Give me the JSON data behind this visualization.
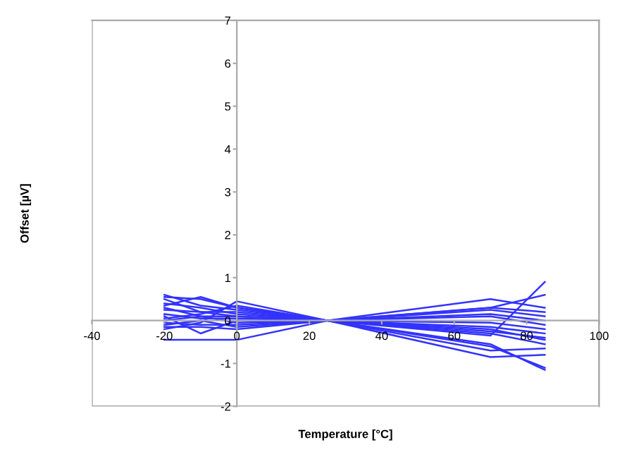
{
  "chart_data": {
    "type": "line",
    "xlabel": "Temperature [°C]",
    "ylabel": "Offset [µV]",
    "xlim": [
      -40,
      100
    ],
    "xticks": [
      -40,
      -20,
      0,
      20,
      40,
      60,
      80,
      100
    ],
    "ylim": [
      -2,
      7
    ],
    "yticks": [
      -2,
      -1,
      0,
      1,
      2,
      3,
      4,
      5,
      6,
      7
    ],
    "grid": false,
    "marker": "none",
    "line_style": "solid",
    "x": [
      -20,
      -10,
      0,
      25,
      70,
      85
    ],
    "series": [
      {
        "color": "#3333ff",
        "values": [
          0.6,
          0.35,
          0.25,
          0,
          -0.55,
          -1.15
        ]
      },
      {
        "color": "#3333ff",
        "values": [
          0.55,
          0.5,
          0.3,
          0,
          -0.6,
          -1.1
        ]
      },
      {
        "color": "#3333ff",
        "values": [
          0.5,
          0.2,
          0.2,
          0,
          -0.85,
          -0.8
        ]
      },
      {
        "color": "#3333ff",
        "values": [
          0.4,
          0.3,
          0.15,
          0,
          -0.7,
          -0.65
        ]
      },
      {
        "color": "#3333ff",
        "values": [
          0.35,
          0.55,
          0.3,
          0,
          -0.3,
          -0.55
        ]
      },
      {
        "color": "#3333ff",
        "values": [
          0.3,
          0.1,
          0.1,
          0,
          -0.25,
          -0.4
        ]
      },
      {
        "color": "#3333ff",
        "values": [
          0.25,
          0.2,
          0.1,
          0,
          -0.15,
          -0.3
        ]
      },
      {
        "color": "#3333ff",
        "values": [
          0.15,
          0.05,
          0.05,
          0,
          -0.05,
          -0.2
        ]
      },
      {
        "color": "#3333ff",
        "values": [
          0.1,
          -0.3,
          0.0,
          0,
          0.1,
          -0.1
        ]
      },
      {
        "color": "#3333ff",
        "values": [
          0.0,
          0.1,
          -0.05,
          0,
          0.15,
          0.0
        ]
      },
      {
        "color": "#3333ff",
        "values": [
          -0.05,
          -0.1,
          -0.1,
          0,
          0.25,
          0.1
        ]
      },
      {
        "color": "#3333ff",
        "values": [
          -0.1,
          0.0,
          -0.15,
          0,
          0.3,
          0.2
        ]
      },
      {
        "color": "#3333ff",
        "values": [
          -0.2,
          -0.05,
          0.45,
          0,
          0.5,
          0.3
        ]
      },
      {
        "color": "#3333ff",
        "values": [
          0.05,
          0.15,
          0.35,
          0,
          0.3,
          0.6
        ]
      },
      {
        "color": "#3333ff",
        "values": [
          -0.15,
          -0.15,
          -0.2,
          0,
          -0.35,
          0.9
        ]
      },
      {
        "color": "#3333ff",
        "values": [
          -0.45,
          -0.45,
          -0.45,
          0,
          -0.2,
          -0.45
        ]
      }
    ]
  }
}
